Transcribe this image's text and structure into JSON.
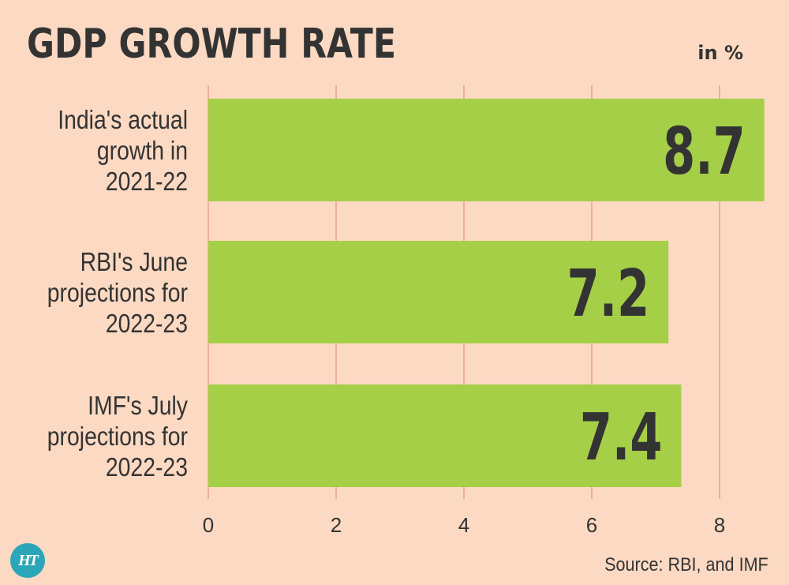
{
  "title": "GDP GROWTH RATE",
  "unit_label": "in %",
  "source": "Source: RBI, and IMF",
  "logo_text": "HT",
  "colors": {
    "background": "#fcd9c2",
    "bar": "#a6cf48",
    "gridline": "#e9a08c",
    "text": "#333333",
    "logo": "#2aa6b8"
  },
  "chart_data": {
    "type": "bar",
    "orientation": "horizontal",
    "categories": [
      [
        "India's actual",
        "growth in",
        "2021-22"
      ],
      [
        "RBI's June",
        "projections for",
        "2022-23"
      ],
      [
        "IMF's July",
        "projections for",
        "2022-23"
      ]
    ],
    "values": [
      8.7,
      7.2,
      7.4
    ],
    "value_labels": [
      "8.7",
      "7.2",
      "7.4"
    ],
    "xticks": [
      0,
      2,
      4,
      6,
      8
    ],
    "xlim": [
      0,
      8.7
    ],
    "grid": true
  }
}
